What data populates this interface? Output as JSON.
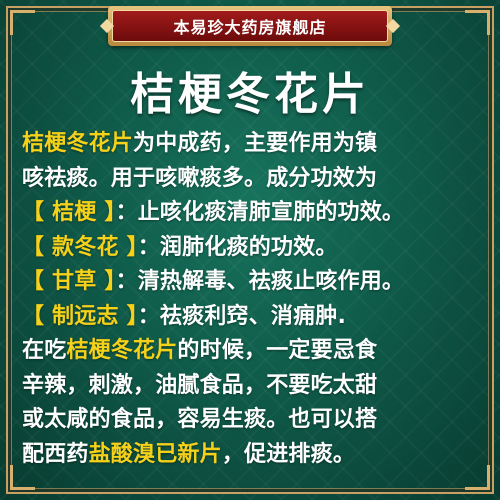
{
  "store_banner": "本易珍大药房旗舰店",
  "title": "桔梗冬花片",
  "colors": {
    "background": "#0f5a49",
    "highlight": "#f5d11a",
    "text": "#ffffff",
    "banner": "#8e1414"
  },
  "lines": [
    [
      {
        "t": "桔梗冬花片",
        "hl": true
      },
      {
        "t": "为中成药，主要作用为镇",
        "hl": false
      }
    ],
    [
      {
        "t": "咳祛痰。用于咳嗽痰多。成分功效为",
        "hl": false
      }
    ],
    [
      {
        "t": "【 桔梗 】",
        "hl": true
      },
      {
        "t": "：止咳化痰清肺宣肺的功效。",
        "hl": false
      }
    ],
    [
      {
        "t": "【 款冬花 】",
        "hl": true
      },
      {
        "t": "：润肺化痰的功效。",
        "hl": false
      }
    ],
    [
      {
        "t": "【 甘草 】",
        "hl": true
      },
      {
        "t": "：清热解毒、祛痰止咳作用。",
        "hl": false
      }
    ],
    [
      {
        "t": "【 制远志 】",
        "hl": true
      },
      {
        "t": "：祛痰利窍、消痈肿.",
        "hl": false
      }
    ],
    [
      {
        "t": "在吃",
        "hl": false
      },
      {
        "t": "桔梗冬花片",
        "hl": true
      },
      {
        "t": "的时候，一定要忌食",
        "hl": false
      }
    ],
    [
      {
        "t": "辛辣，刺激，油腻食品，不要吃太甜",
        "hl": false
      }
    ],
    [
      {
        "t": "或太咸的食品，容易生痰。也可以搭",
        "hl": false
      }
    ],
    [
      {
        "t": "配西药",
        "hl": false
      },
      {
        "t": "盐酸溴已新片",
        "hl": true
      },
      {
        "t": "，促进排痰。",
        "hl": false
      }
    ]
  ]
}
